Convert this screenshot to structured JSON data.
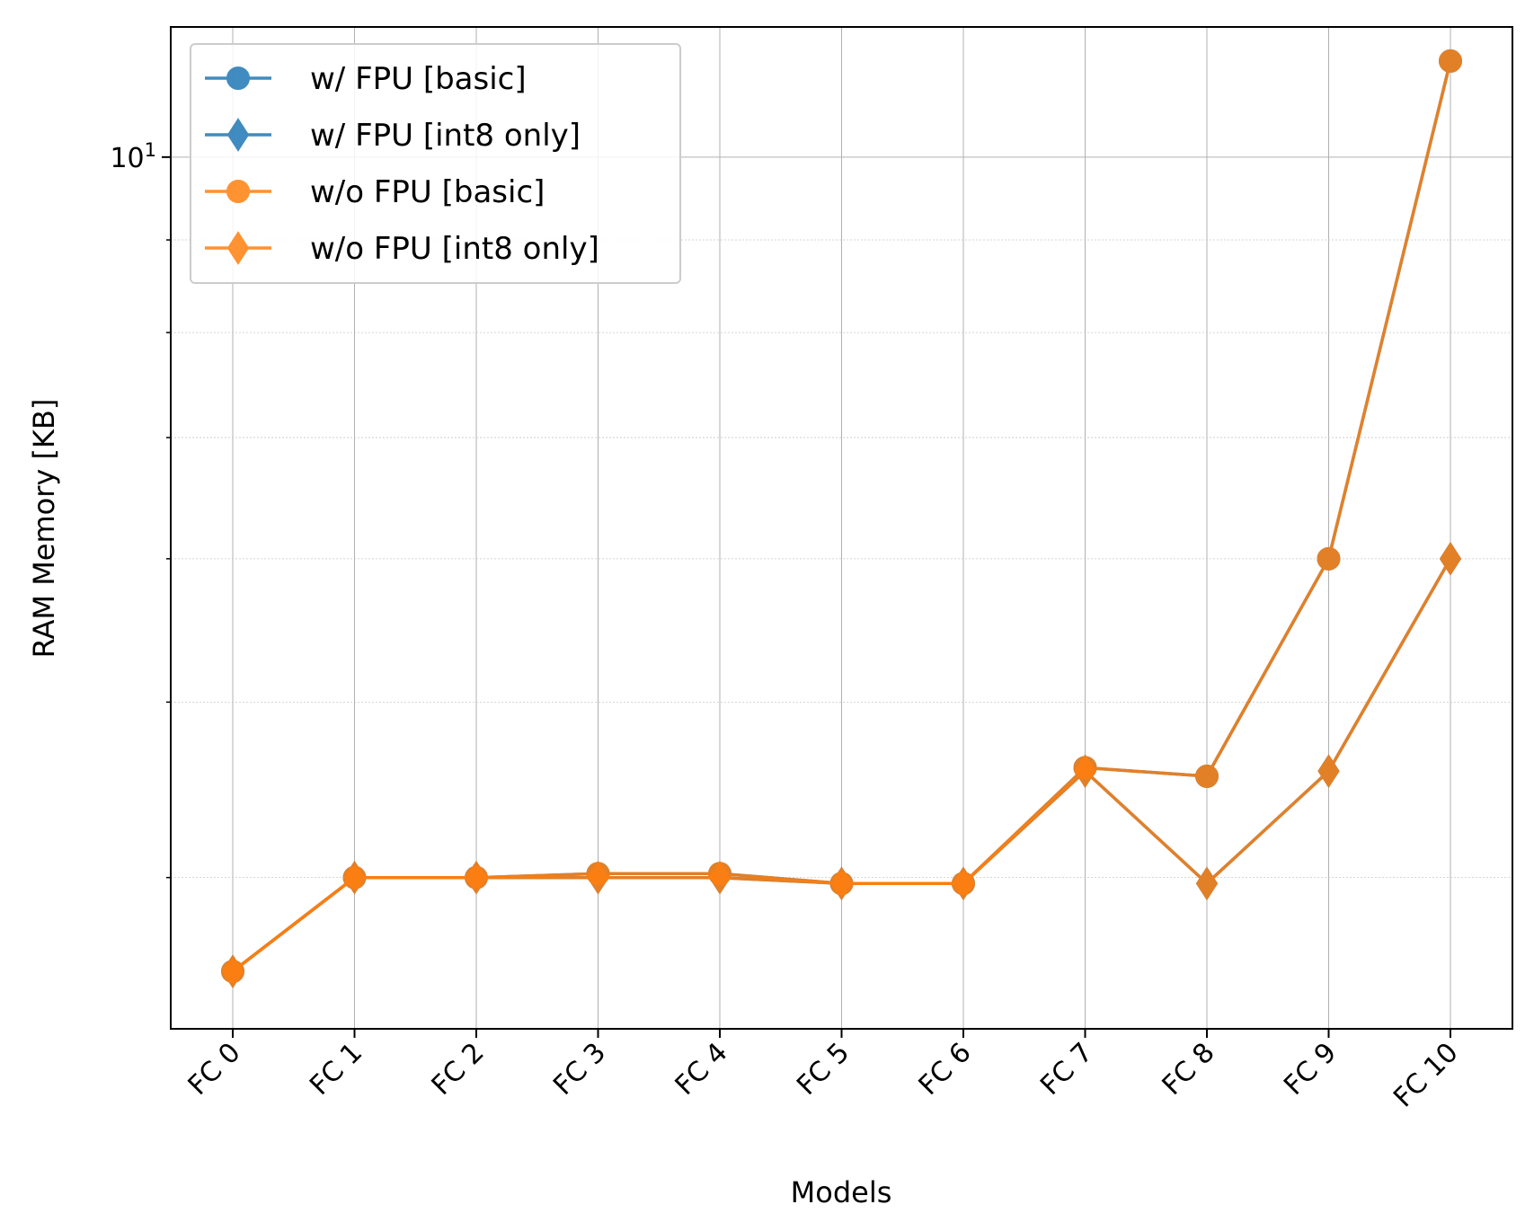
{
  "chart_data": {
    "type": "line",
    "title": "",
    "xlabel": "Models",
    "ylabel": "RAM Memory [KB]",
    "y_scale": "log",
    "ylim": [
      3.3,
      11.8
    ],
    "y_major_tick": {
      "value": 10,
      "label_base": "10",
      "label_exp": "1"
    },
    "y_minor_ticks": [
      4,
      5,
      6,
      7,
      8,
      9
    ],
    "grid": true,
    "legend_position": "upper left",
    "categories": [
      "FC 0",
      "FC 1",
      "FC 2",
      "FC 3",
      "FC 4",
      "FC 5",
      "FC 6",
      "FC 7",
      "FC 8",
      "FC 9",
      "FC 10"
    ],
    "series": [
      {
        "name": "w/ FPU [basic]",
        "marker": "circle",
        "color": "#1f77b4",
        "values": [
          3.55,
          4.0,
          4.0,
          4.02,
          4.02,
          3.97,
          3.97,
          4.6,
          4.55,
          6.0,
          11.3
        ]
      },
      {
        "name": "w/ FPU [int8 only]",
        "marker": "diamond",
        "color": "#1f77b4",
        "values": [
          3.55,
          4.0,
          4.0,
          4.0,
          4.0,
          3.97,
          3.97,
          4.58,
          3.97,
          4.58,
          6.0
        ]
      },
      {
        "name": "w/o FPU [basic]",
        "marker": "circle",
        "color": "#ff7f0e",
        "values": [
          3.55,
          4.0,
          4.0,
          4.02,
          4.02,
          3.97,
          3.97,
          4.6,
          4.55,
          6.0,
          11.3
        ]
      },
      {
        "name": "w/o FPU [int8 only]",
        "marker": "diamond",
        "color": "#ff7f0e",
        "values": [
          3.55,
          4.0,
          4.0,
          4.0,
          4.0,
          3.97,
          3.97,
          4.58,
          3.97,
          4.58,
          6.0
        ]
      }
    ]
  }
}
